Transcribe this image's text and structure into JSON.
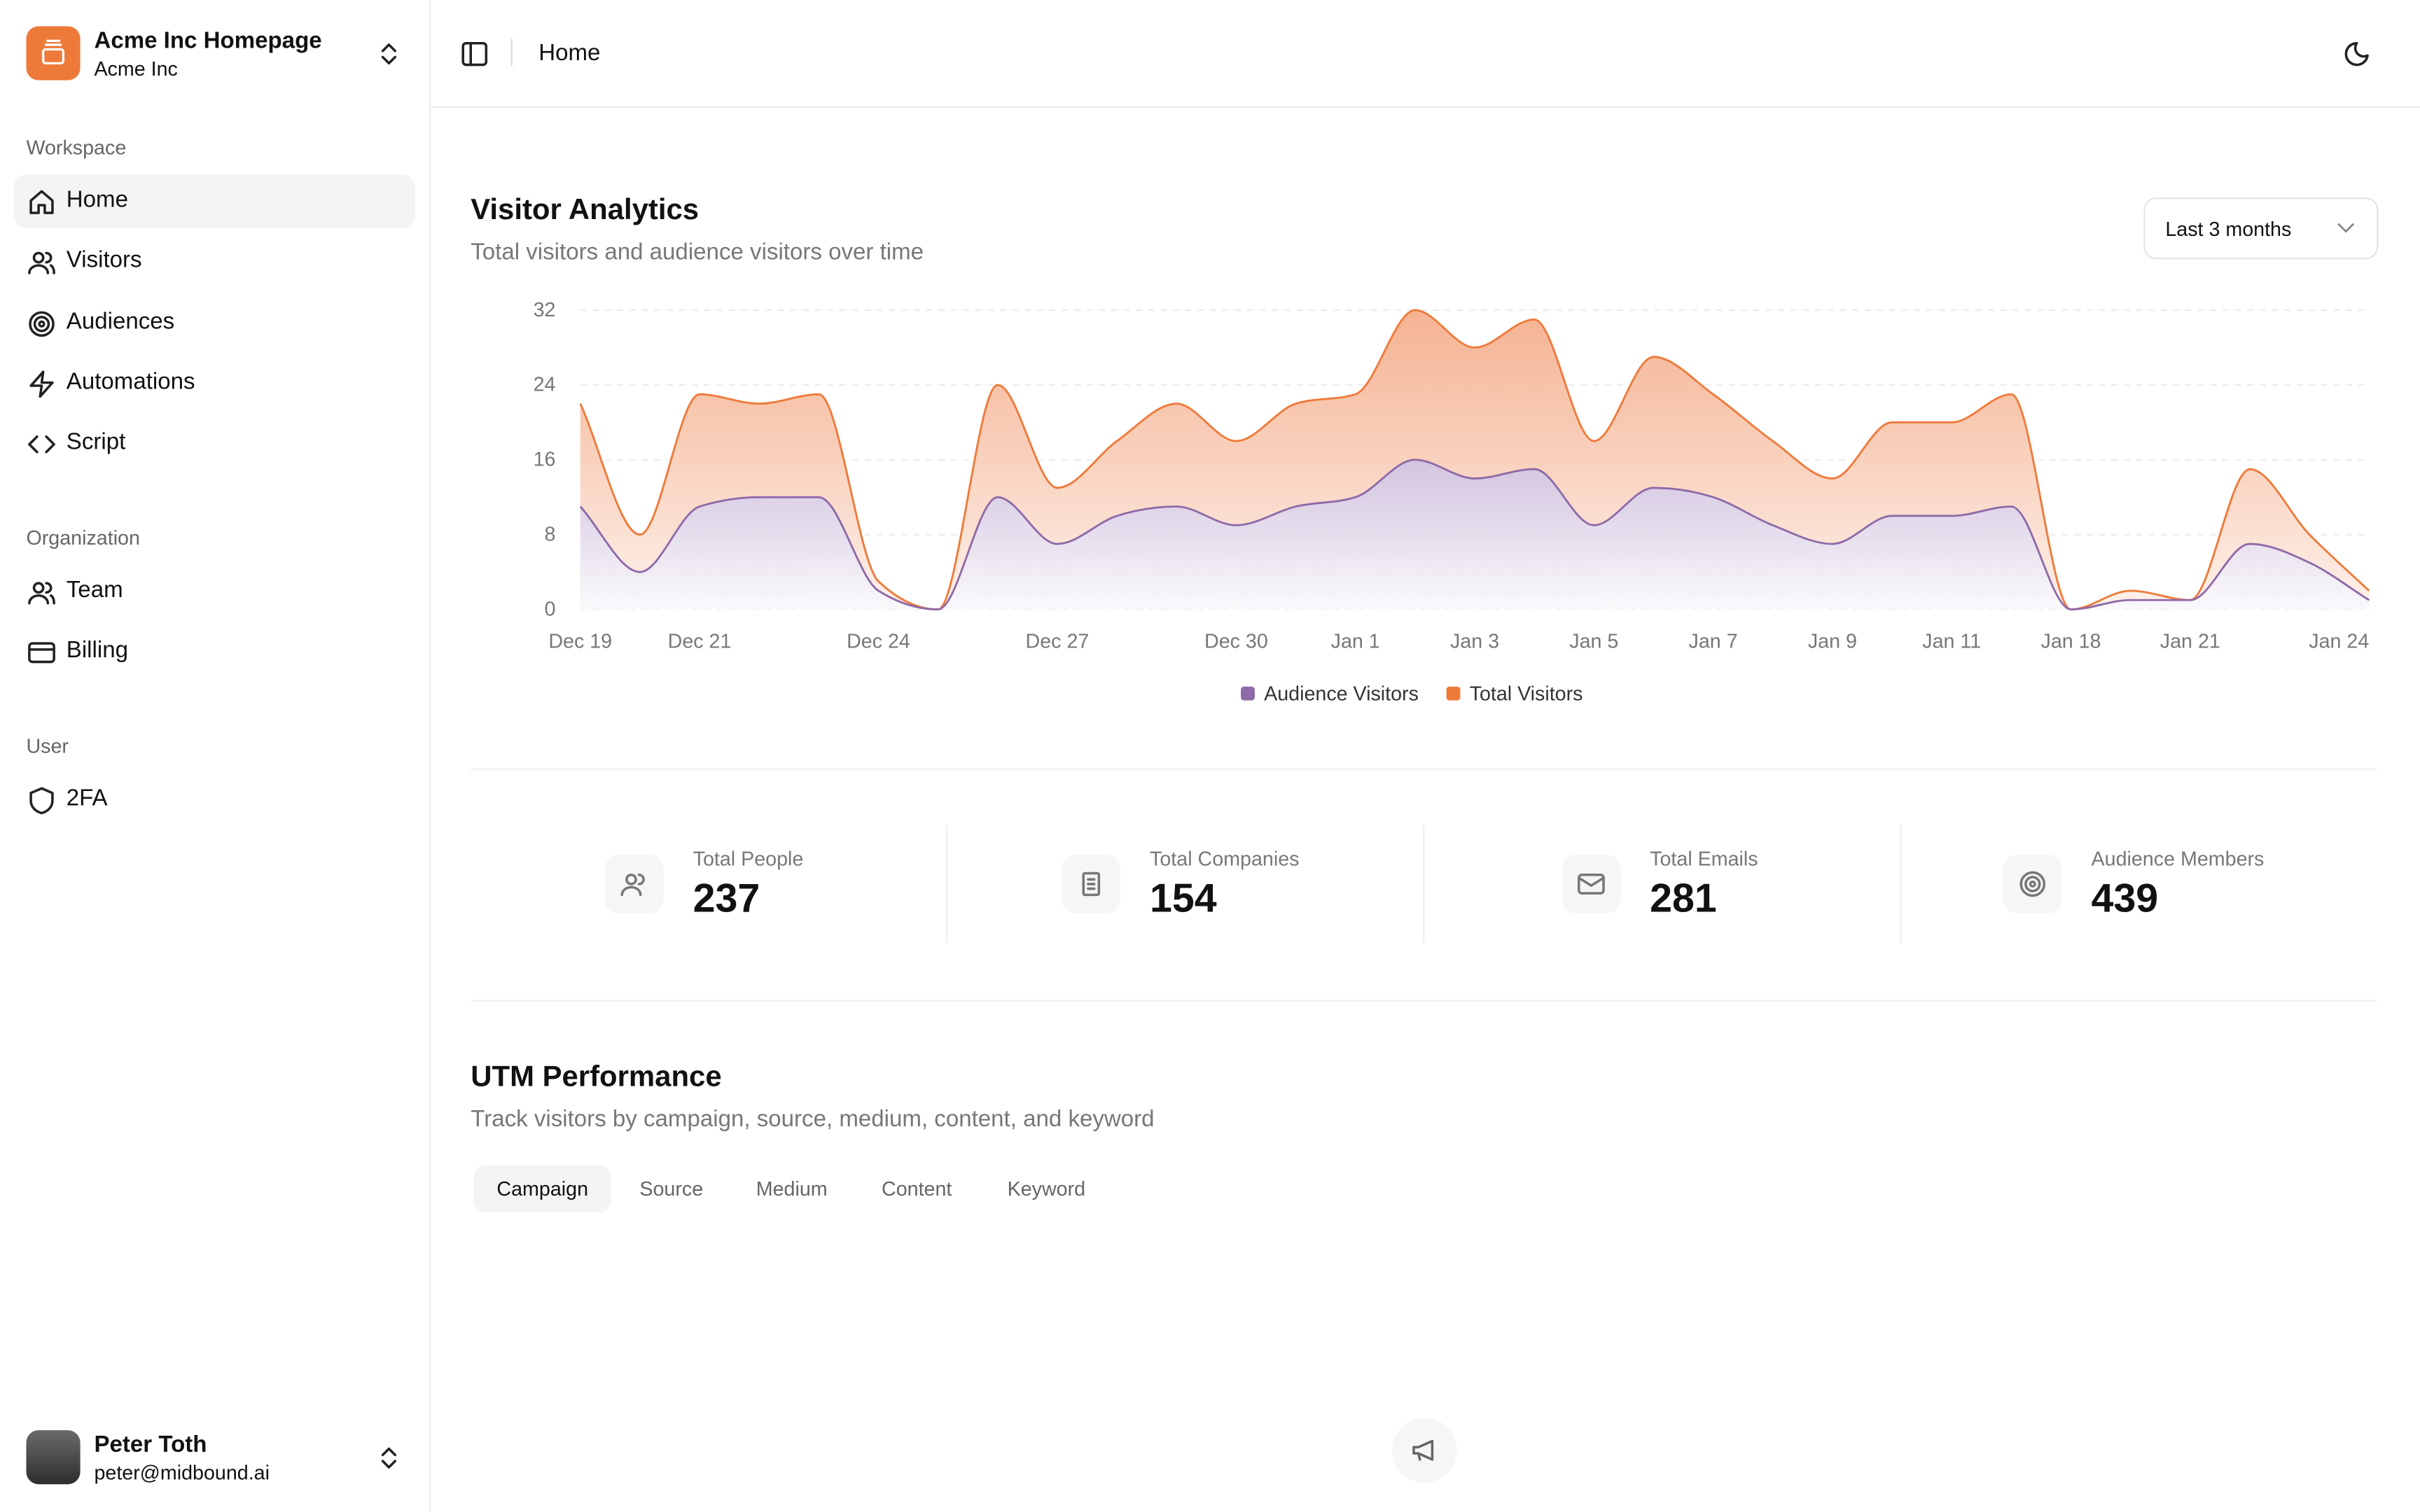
{
  "sidebar": {
    "team_name": "Acme Inc Homepage",
    "team_sub": "Acme Inc",
    "sections": [
      {
        "title": "Workspace",
        "items": [
          "Home",
          "Visitors",
          "Audiences",
          "Automations",
          "Script"
        ]
      },
      {
        "title": "Organization",
        "items": [
          "Team",
          "Billing"
        ]
      },
      {
        "title": "User",
        "items": [
          "2FA"
        ]
      }
    ],
    "user": {
      "name": "Peter Toth",
      "email": "peter@midbound.ai"
    }
  },
  "header": {
    "breadcrumb": "Home"
  },
  "controls": {
    "range": "Last 3 months"
  },
  "chart_data": {
    "type": "area",
    "title": "Visitor Analytics",
    "subtitle": "Total visitors and audience visitors over time",
    "categories": [
      "Dec 19",
      null,
      "Dec 21",
      null,
      null,
      "Dec 24",
      null,
      null,
      "Dec 27",
      null,
      null,
      "Dec 30",
      null,
      "Jan 1",
      null,
      "Jan 3",
      null,
      "Jan 5",
      null,
      "Jan 7",
      null,
      "Jan 9",
      null,
      "Jan 11",
      null,
      "Jan 18",
      null,
      "Jan 21",
      null,
      null,
      "Jan 24"
    ],
    "series": [
      {
        "name": "Audience Visitors",
        "color": "#8e6aa8",
        "values": [
          11,
          4,
          11,
          12,
          12,
          2,
          0,
          12,
          7,
          10,
          11,
          9,
          11,
          12,
          16,
          14,
          15,
          9,
          13,
          12,
          9,
          7,
          10,
          10,
          11,
          0,
          1,
          1,
          7,
          5,
          1
        ]
      },
      {
        "name": "Total Visitors",
        "color": "#ee7a3a",
        "values": [
          22,
          8,
          23,
          22,
          23,
          3,
          0,
          24,
          13,
          18,
          22,
          18,
          22,
          23,
          32,
          28,
          31,
          18,
          27,
          23,
          18,
          14,
          20,
          20,
          23,
          0,
          2,
          1,
          15,
          8,
          2
        ]
      }
    ],
    "ylim": [
      0,
      32
    ],
    "yticks": [
      0,
      8,
      16,
      24,
      32
    ],
    "grid": true,
    "legend": "bottom"
  },
  "stats": [
    {
      "label": "Total People",
      "value": "237"
    },
    {
      "label": "Total Companies",
      "value": "154"
    },
    {
      "label": "Total Emails",
      "value": "281"
    },
    {
      "label": "Audience Members",
      "value": "439"
    }
  ],
  "utm": {
    "title": "UTM Performance",
    "subtitle": "Track visitors by campaign, source, medium, content, and keyword",
    "tabs": [
      "Campaign",
      "Source",
      "Medium",
      "Content",
      "Keyword"
    ]
  }
}
